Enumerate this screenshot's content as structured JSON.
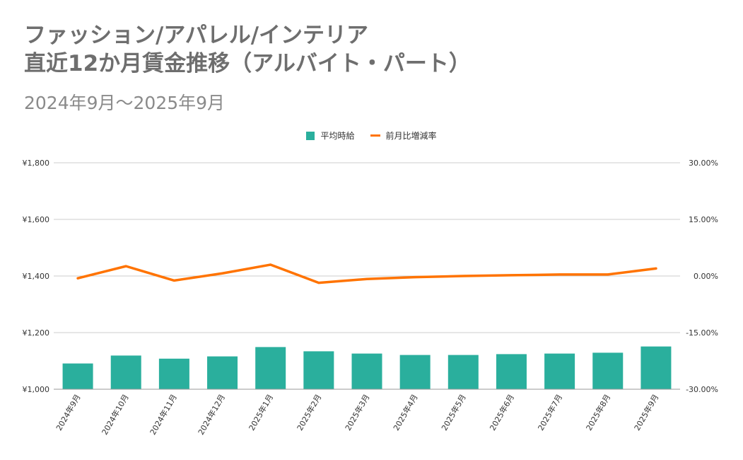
{
  "title_lines": [
    "ファッション/アパレル/インテリア",
    "直近12か月賃金推移（アルバイト・パート）"
  ],
  "subtitle": "2024年9月～2025年9月",
  "colors": {
    "bar": "#2aaf9d",
    "line": "#ff7300",
    "grid": "#cccccc",
    "title": "#6e6e6e"
  },
  "chart_data": {
    "type": "bar+line",
    "title": "ファッション/アパレル/インテリア 直近12か月賃金推移（アルバイト・パート）",
    "subtitle": "2024年9月～2025年9月",
    "legend_position": "top-center",
    "categories": [
      "2024年9月",
      "2024年10月",
      "2024年11月",
      "2024年12月",
      "2025年1月",
      "2025年2月",
      "2025年3月",
      "2025年4月",
      "2025年5月",
      "2025年6月",
      "2025年7月",
      "2025年8月",
      "2025年9月"
    ],
    "series": [
      {
        "name": "平均時給",
        "type": "bar",
        "axis": "left",
        "values": [
          1091,
          1119,
          1108,
          1116,
          1149,
          1134,
          1126,
          1121,
          1121,
          1124,
          1126,
          1129,
          1151
        ]
      },
      {
        "name": "前月比増減率",
        "type": "line",
        "axis": "right",
        "values": [
          -0.6,
          2.6,
          -1.2,
          0.7,
          3.0,
          -1.8,
          -0.8,
          -0.3,
          0.0,
          0.2,
          0.4,
          0.4,
          2.0
        ]
      }
    ],
    "y_left": {
      "min": 1000,
      "max": 1800,
      "ticks": [
        "¥1,000",
        "¥1,200",
        "¥1,400",
        "¥1,600",
        "¥1,800"
      ]
    },
    "y_right": {
      "min": -30,
      "max": 30,
      "ticks": [
        "-30.00%",
        "-15.00%",
        "0.00%",
        "15.00%",
        "30.00%"
      ]
    },
    "grid": true
  }
}
